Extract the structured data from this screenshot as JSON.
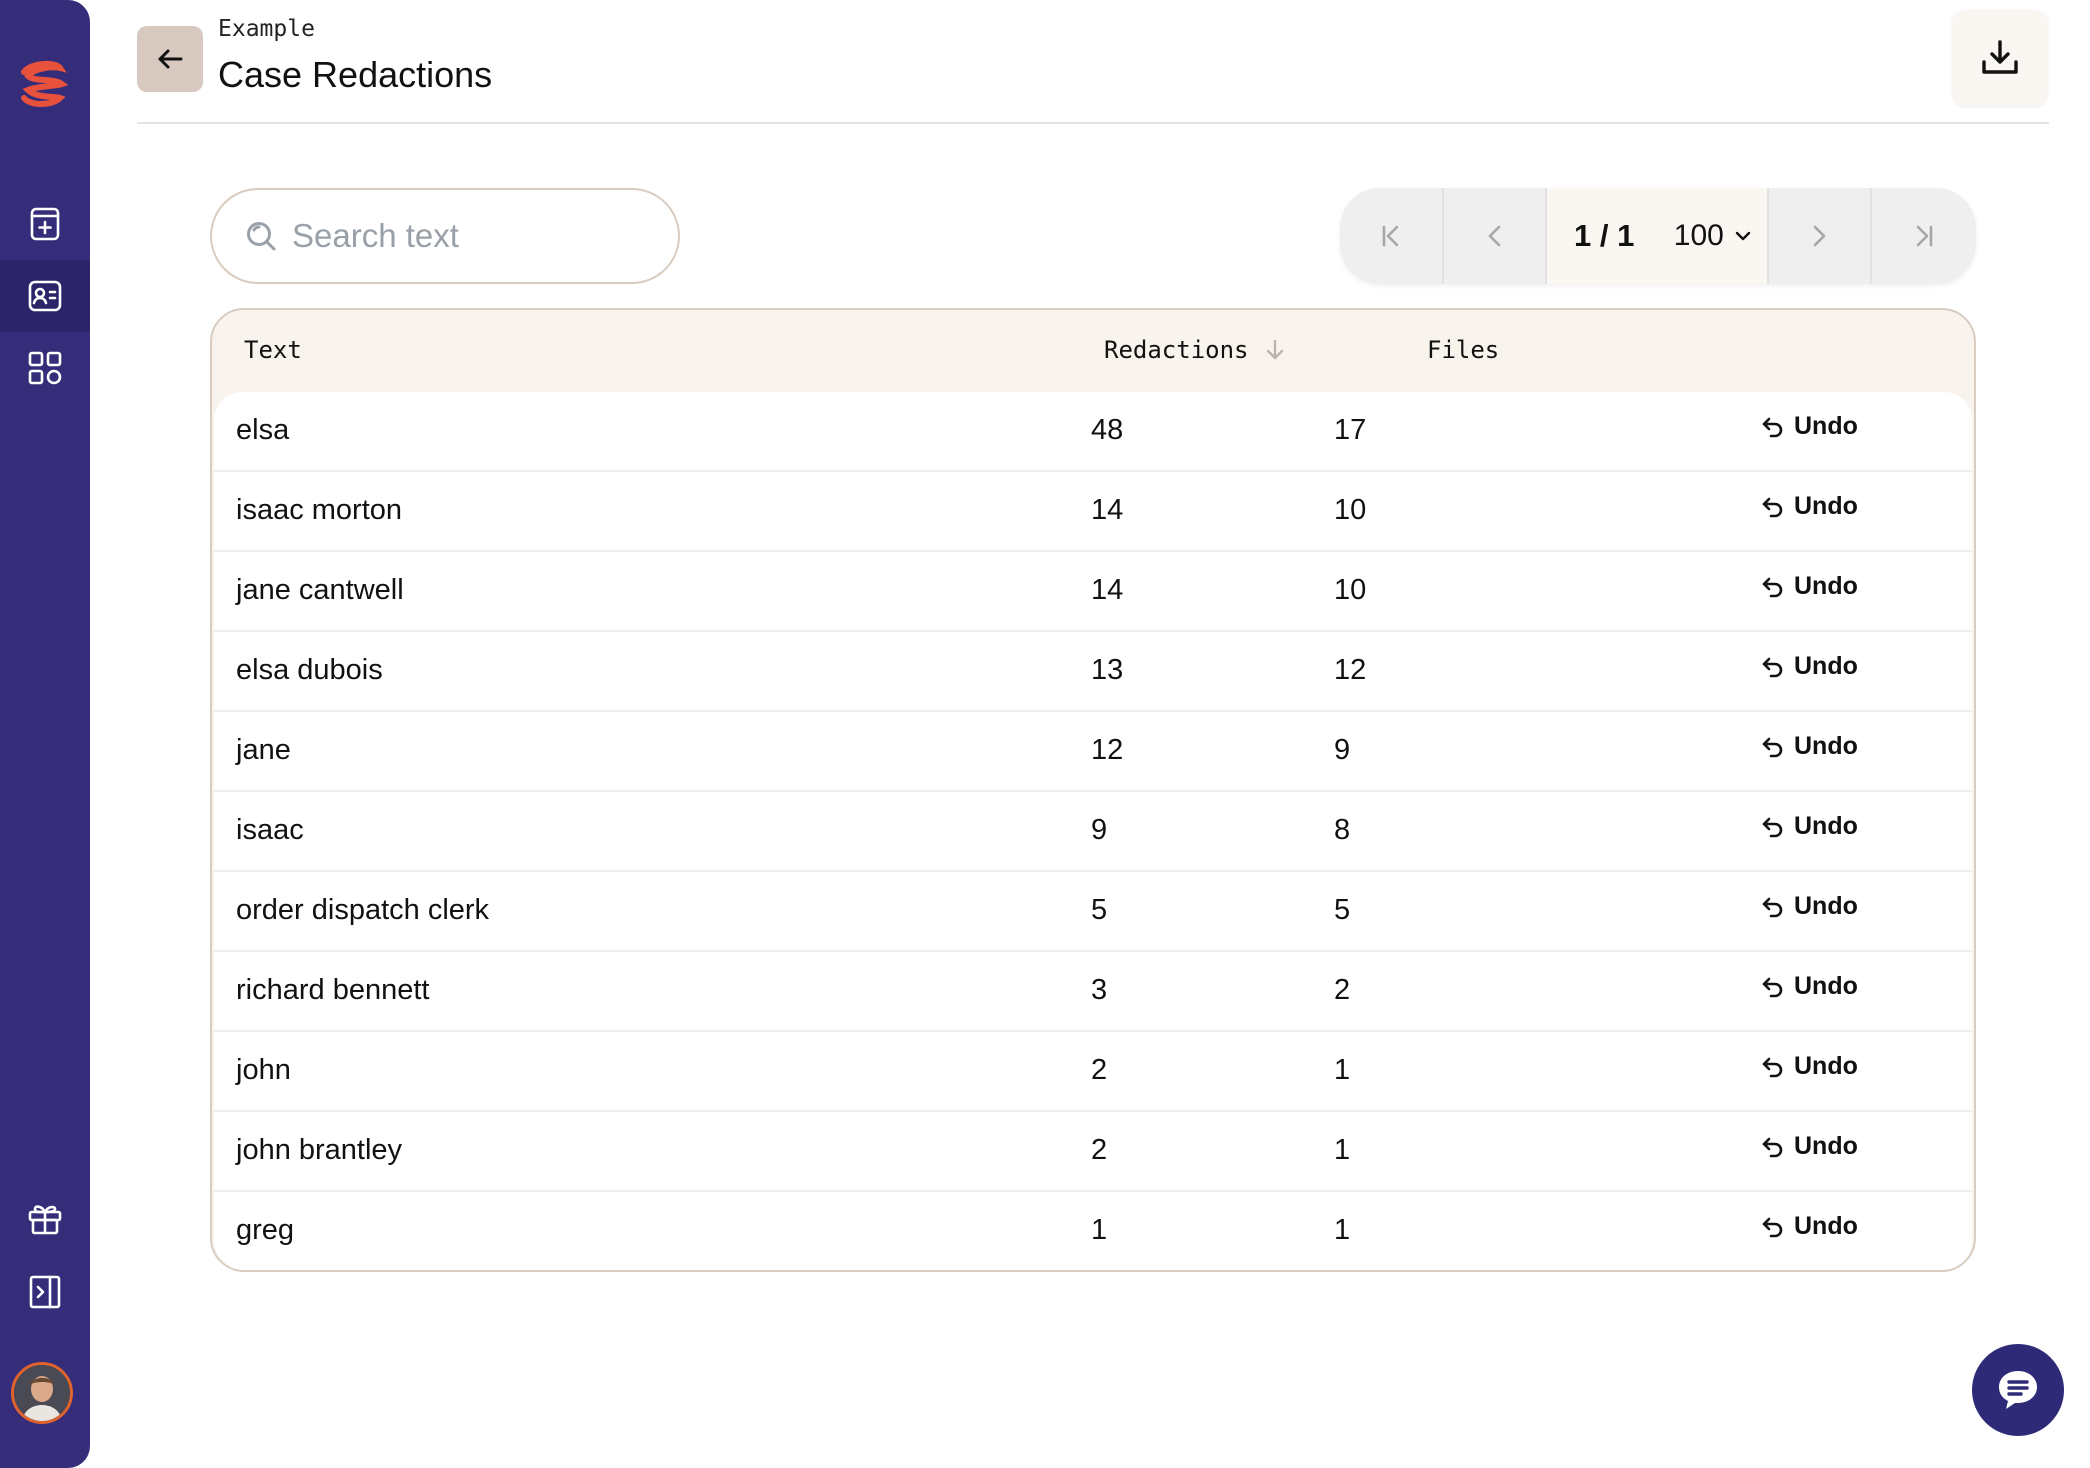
{
  "header": {
    "eyebrow": "Example",
    "title": "Case Redactions"
  },
  "search": {
    "placeholder": "Search text"
  },
  "pagination": {
    "current": "1 / 1",
    "page_size": "100"
  },
  "table": {
    "columns": [
      "Text",
      "Redactions",
      "Files"
    ],
    "undo_label": "Undo",
    "rows": [
      {
        "text": "elsa",
        "redactions": "48",
        "files": "17"
      },
      {
        "text": "isaac morton",
        "redactions": "14",
        "files": "10"
      },
      {
        "text": "jane cantwell",
        "redactions": "14",
        "files": "10"
      },
      {
        "text": "elsa dubois",
        "redactions": "13",
        "files": "12"
      },
      {
        "text": "jane",
        "redactions": "12",
        "files": "9"
      },
      {
        "text": "isaac",
        "redactions": "9",
        "files": "8"
      },
      {
        "text": "order dispatch clerk",
        "redactions": "5",
        "files": "5"
      },
      {
        "text": "richard bennett",
        "redactions": "3",
        "files": "2"
      },
      {
        "text": "john",
        "redactions": "2",
        "files": "1"
      },
      {
        "text": "john brantley",
        "redactions": "2",
        "files": "1"
      },
      {
        "text": "greg",
        "redactions": "1",
        "files": "1"
      }
    ]
  },
  "icons": {
    "logo": "logo-icon",
    "sidebar": [
      "file-plus-icon",
      "contact-card-icon",
      "grid-icon",
      "gift-icon",
      "collapse-panel-icon"
    ],
    "header": [
      "arrow-left-icon",
      "download-icon"
    ],
    "pager": [
      "first-page-icon",
      "prev-page-icon",
      "chevron-down-icon",
      "next-page-icon",
      "last-page-icon"
    ],
    "chat": "chat-icon"
  },
  "colors": {
    "sidebar": "#352c7a",
    "accent_logo": "#e8523c",
    "table_header_bg": "#f8f3ec",
    "border": "#d9ccc0",
    "chat_button": "#2e2a78"
  }
}
